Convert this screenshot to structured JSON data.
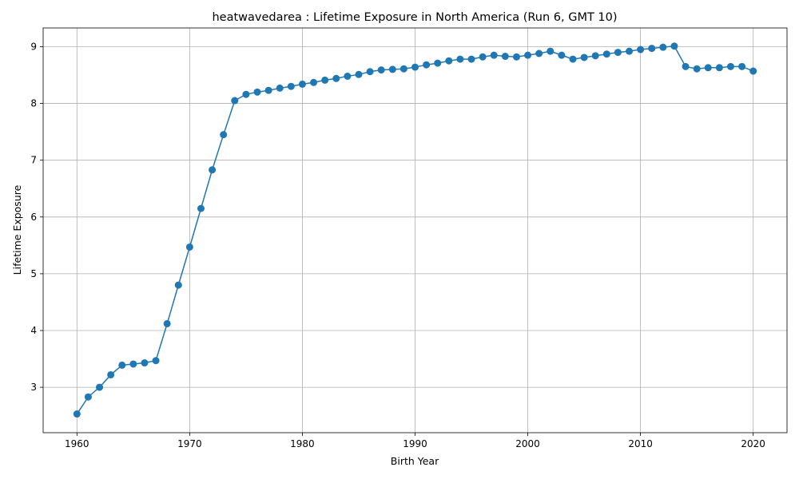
{
  "chart_data": {
    "type": "line",
    "title": "heatwavedarea : Lifetime Exposure in North America (Run 6, GMT 10)",
    "xlabel": "Birth Year",
    "ylabel": "Lifetime Exposure",
    "xlim": [
      1957,
      2023
    ],
    "ylim": [
      2.2,
      9.33
    ],
    "xticks": [
      1960,
      1970,
      1980,
      1990,
      2000,
      2010,
      2020
    ],
    "yticks": [
      3,
      4,
      5,
      6,
      7,
      8,
      9
    ],
    "grid": true,
    "marker": "circle",
    "color": "#1f77b4",
    "x": [
      1960,
      1961,
      1962,
      1963,
      1964,
      1965,
      1966,
      1967,
      1968,
      1969,
      1970,
      1971,
      1972,
      1973,
      1974,
      1975,
      1976,
      1977,
      1978,
      1979,
      1980,
      1981,
      1982,
      1983,
      1984,
      1985,
      1986,
      1987,
      1988,
      1989,
      1990,
      1991,
      1992,
      1993,
      1994,
      1995,
      1996,
      1997,
      1998,
      1999,
      2000,
      2001,
      2002,
      2003,
      2004,
      2005,
      2006,
      2007,
      2008,
      2009,
      2010,
      2011,
      2012,
      2013,
      2014,
      2015,
      2016,
      2017,
      2018,
      2019,
      2020
    ],
    "y": [
      2.53,
      2.83,
      3.0,
      3.22,
      3.39,
      3.41,
      3.43,
      3.47,
      4.12,
      4.8,
      5.47,
      6.15,
      6.83,
      7.45,
      8.05,
      8.16,
      8.2,
      8.23,
      8.27,
      8.3,
      8.34,
      8.37,
      8.41,
      8.44,
      8.48,
      8.51,
      8.56,
      8.59,
      8.6,
      8.61,
      8.64,
      8.68,
      8.71,
      8.75,
      8.78,
      8.78,
      8.82,
      8.85,
      8.83,
      8.82,
      8.85,
      8.88,
      8.92,
      8.85,
      8.78,
      8.81,
      8.84,
      8.87,
      8.9,
      8.92,
      8.95,
      8.97,
      8.99,
      9.01,
      8.65,
      8.61,
      8.63,
      8.63,
      8.65,
      8.65,
      8.57
    ]
  }
}
